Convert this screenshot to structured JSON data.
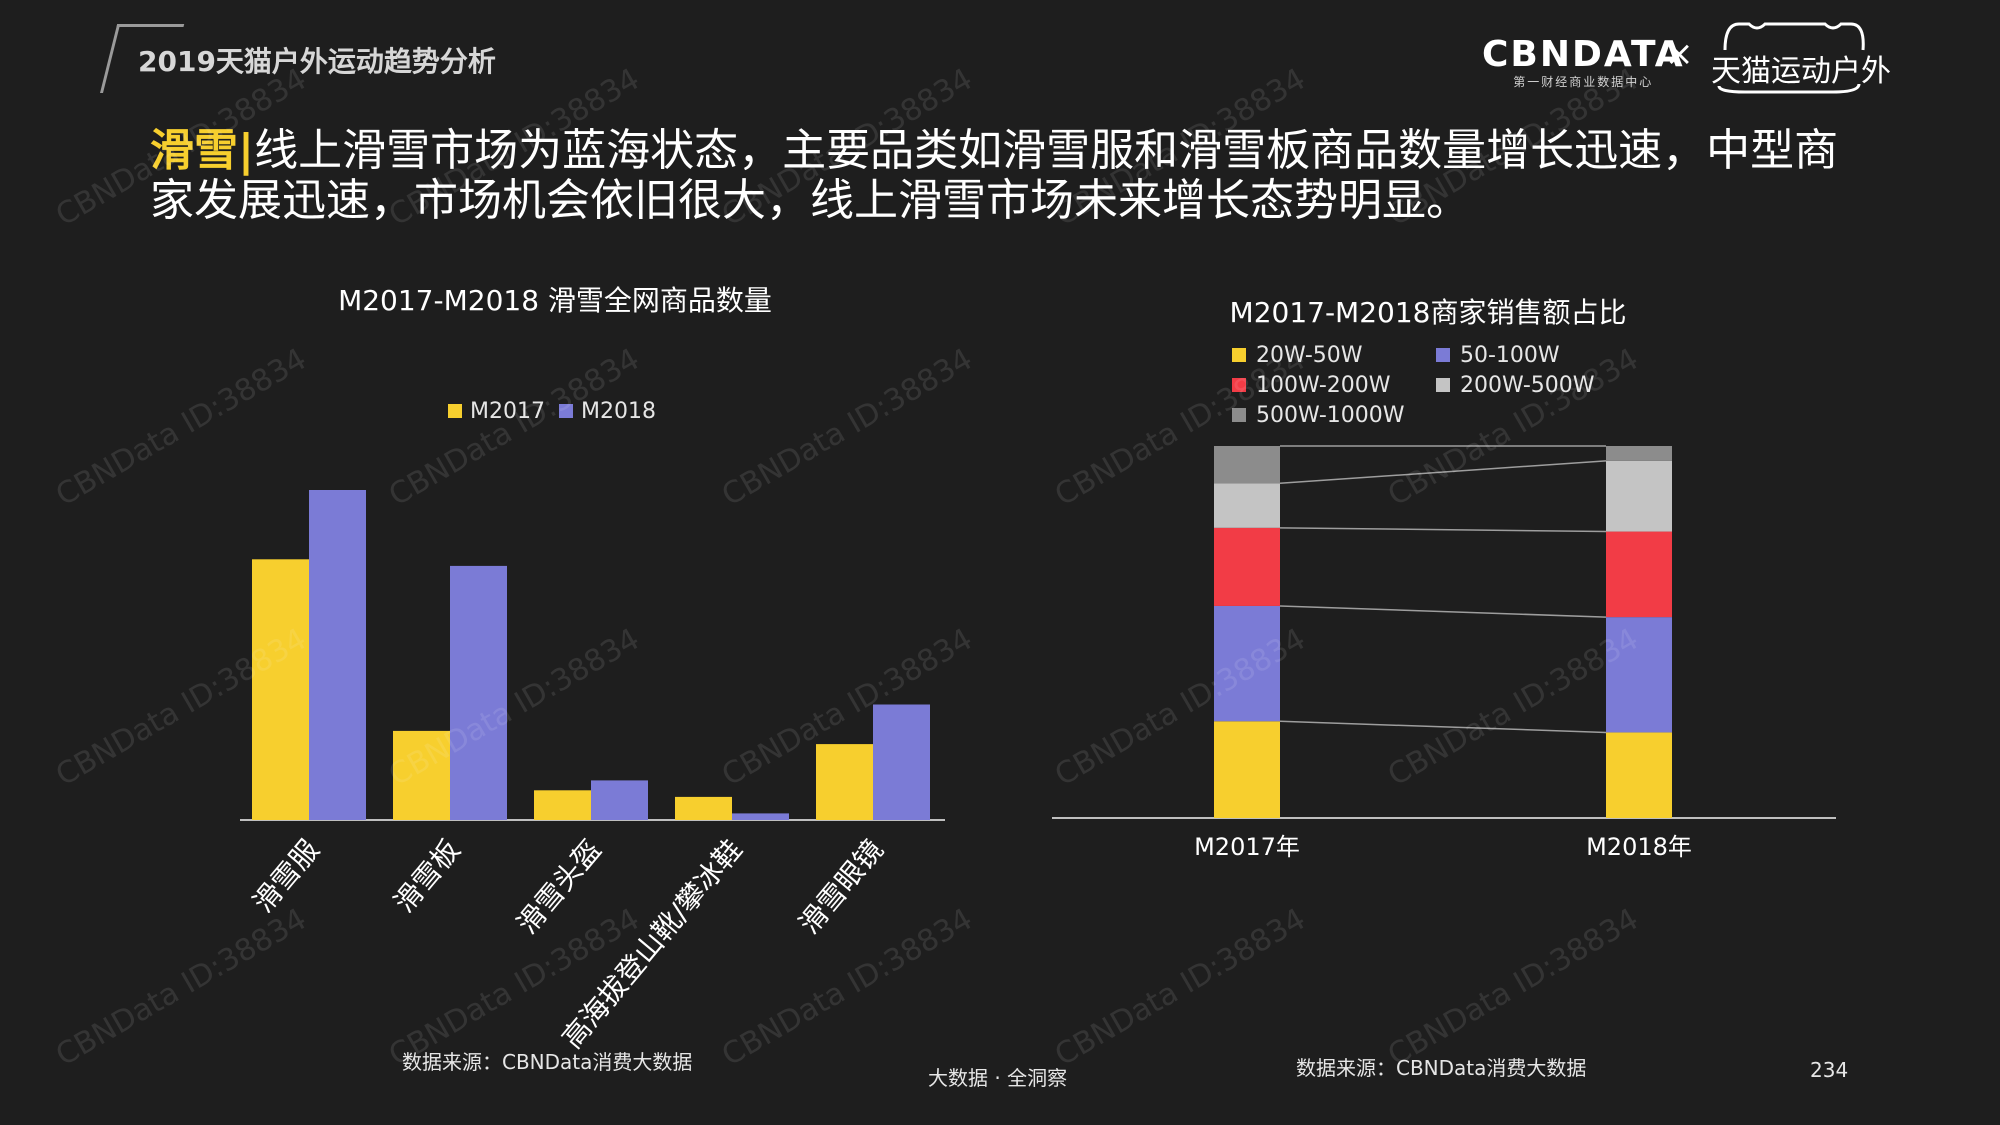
{
  "header": {
    "report_title": "2019天猫户外运动趋势分析",
    "logo_cbn_main": "CBNDATA",
    "logo_cbn_sub": "第一财经商业数据中心",
    "logo_x": "×",
    "logo_tmall": "天猫运动户外"
  },
  "headline": {
    "highlight": "滑雪|",
    "text": "线上滑雪市场为蓝海状态，主要品类如滑雪服和滑雪板商品数量增长迅速，中型商家发展迅速，市场机会依旧很大，线上滑雪市场未来增长态势明显。"
  },
  "colors": {
    "yellow": "#f7cf2e",
    "purple": "#7b7bd6",
    "red": "#f23c46",
    "light_gray": "#c4c4c4",
    "dark_gray": "#8c8c8c",
    "background": "#1e1e1e"
  },
  "chart_data": [
    {
      "type": "bar",
      "title": "M2017-M2018 滑雪全网商品数量",
      "categories": [
        "滑雪服",
        "滑雪板",
        "滑雪头盔",
        "高海拔登山靴/攀冰鞋",
        "滑雪眼镜"
      ],
      "series": [
        {
          "name": "M2017",
          "values": [
            79,
            27,
            9,
            7,
            23
          ],
          "color": "#f7cf2e"
        },
        {
          "name": "M2018",
          "values": [
            100,
            77,
            12,
            2,
            35
          ],
          "color": "#7b7bd6"
        }
      ],
      "ylim": [
        0,
        100
      ],
      "grid": false,
      "legend": "top-center"
    },
    {
      "type": "stacked-bar",
      "title": "M2017-M2018商家销售额占比",
      "categories": [
        "M2017年",
        "M2018年"
      ],
      "series": [
        {
          "name": "20W-50W",
          "values": [
            26,
            23
          ],
          "color": "#f7cf2e"
        },
        {
          "name": "50-100W",
          "values": [
            31,
            31
          ],
          "color": "#7b7bd6"
        },
        {
          "name": "100W-200W",
          "values": [
            21,
            23
          ],
          "color": "#f23c46"
        },
        {
          "name": "200W-500W",
          "values": [
            12,
            19
          ],
          "color": "#c4c4c4"
        },
        {
          "name": "500W-1000W",
          "values": [
            10,
            4
          ],
          "color": "#8c8c8c"
        }
      ],
      "ylim": [
        0,
        100
      ],
      "legend": "top-left",
      "connector_lines": true
    }
  ],
  "footer": {
    "source_left": "数据来源：CBNData消费大数据",
    "source_right": "数据来源：CBNData消费大数据",
    "center": "大数据 · 全洞察",
    "page": "234"
  },
  "watermark": "CBNData ID:38834"
}
